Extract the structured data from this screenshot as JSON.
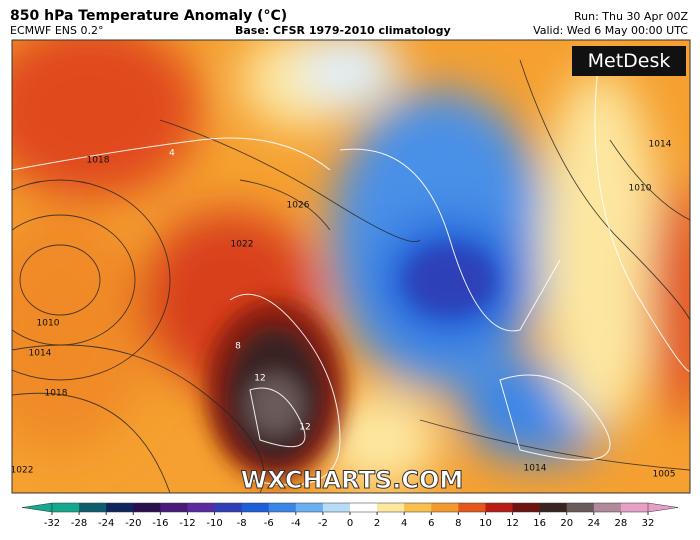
{
  "header": {
    "title": "850 hPa Temperature Anomaly (°C)",
    "model": "ECMWF ENS 0.2°",
    "base": "Base: CFSR 1979-2010 climatology",
    "run": "Run: Thu 30 Apr 00Z",
    "valid": "Valid: Wed 6 May 00:00 UTC"
  },
  "logo": "MetDesk",
  "watermark": "WXCHARTS.COM",
  "contour_labels": [
    "1018",
    "1010",
    "1014",
    "1018",
    "1026",
    "1022",
    "1014",
    "1010",
    "1014",
    "1022",
    "1005",
    "8",
    "12",
    "12",
    "4"
  ],
  "colorbar": {
    "ticks": [
      -32,
      -28,
      -24,
      -20,
      -16,
      -12,
      -10,
      -8,
      -6,
      -4,
      -2,
      0,
      2,
      4,
      6,
      8,
      10,
      12,
      16,
      20,
      24,
      28,
      32
    ],
    "colors": [
      "#14a88c",
      "#0e5d6e",
      "#10245e",
      "#2a0f4e",
      "#4a1a7a",
      "#5a2aa0",
      "#2f3fb8",
      "#1e5ed8",
      "#3a86e8",
      "#6ab0f0",
      "#b8dcf6",
      "#ffffff",
      "#fde7a0",
      "#f9c050",
      "#f39a2c",
      "#e4561c",
      "#b81c14",
      "#6e1410",
      "#3a2420",
      "#6a5a5a",
      "#b08a9a",
      "#e6a0c8"
    ]
  }
}
